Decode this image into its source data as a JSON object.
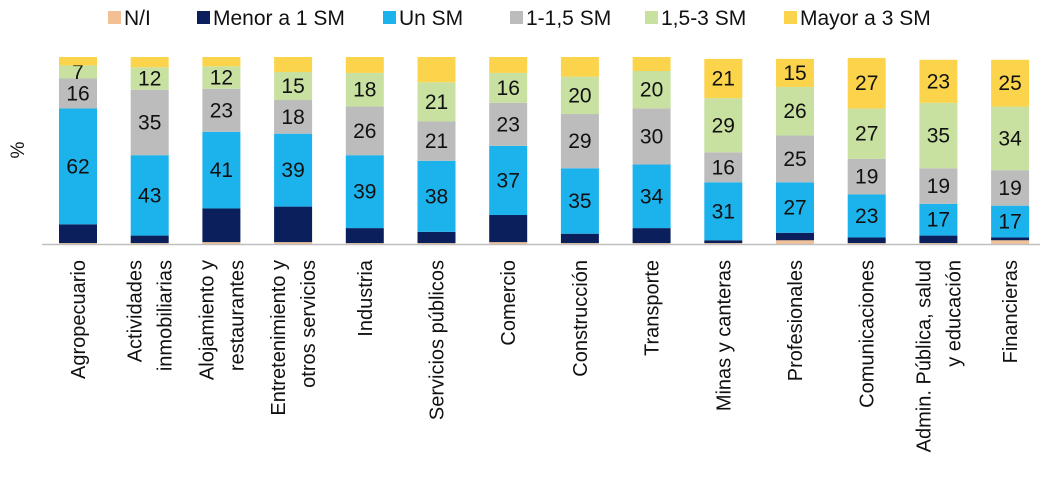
{
  "chart_data": {
    "type": "bar",
    "stacked": true,
    "orientation": "vertical",
    "ylabel": "%",
    "ylim": [
      0,
      100
    ],
    "legend_position": "top",
    "grid": false,
    "categories": [
      [
        "Agropecuario"
      ],
      [
        "Actividades",
        "inmobiliarias"
      ],
      [
        "Alojamiento y",
        "restaurantes"
      ],
      [
        "Entretenimiento y",
        "otros servicios"
      ],
      [
        "Industria"
      ],
      [
        "Servicios públicos"
      ],
      [
        "Comercio"
      ],
      [
        "Construcción"
      ],
      [
        "Transporte"
      ],
      [
        "Minas y canteras"
      ],
      [
        "Profesionales"
      ],
      [
        "Comunicaciones"
      ],
      [
        "Admin. Pública, salud",
        "y educación"
      ],
      [
        "Financieras"
      ]
    ],
    "series": [
      {
        "name": "N/I",
        "color": "#f2c094",
        "values": [
          0.5,
          0.5,
          1,
          1,
          0.5,
          0.5,
          1,
          0.5,
          0.5,
          0.5,
          2,
          0.5,
          0.5,
          2
        ]
      },
      {
        "name": "Menor a 1 SM",
        "color": "#0b1f5c",
        "values": [
          10,
          4,
          18,
          19,
          8,
          6,
          14.5,
          5,
          8,
          1.5,
          4,
          3,
          4,
          1.5
        ]
      },
      {
        "name": "Un SM",
        "color": "#1cb2ec",
        "values": [
          62,
          43,
          41,
          39,
          39,
          38,
          37,
          35,
          34,
          31,
          27,
          23,
          17,
          17
        ]
      },
      {
        "name": "1-1,5 SM",
        "color": "#bcbcbc",
        "values": [
          16,
          35,
          23,
          18,
          26,
          21,
          23,
          29,
          30,
          16,
          25,
          19,
          19,
          19
        ]
      },
      {
        "name": "1,5-3 SM",
        "color": "#c8e0a0",
        "values": [
          7,
          12,
          12,
          15,
          18,
          21,
          16,
          20,
          20,
          29,
          26,
          27,
          35,
          34
        ]
      },
      {
        "name": "Mayor a 3 SM",
        "color": "#fcd44c",
        "values": [
          4.5,
          5.5,
          5,
          8,
          8.5,
          13.5,
          8.5,
          10.5,
          7.5,
          21,
          15,
          27,
          23,
          25
        ]
      }
    ],
    "data_labels": {
      "Un SM": [
        "62",
        "43",
        "41",
        "39",
        "39",
        "38",
        "37",
        "35",
        "34",
        "31",
        "27",
        "23",
        "17",
        "17"
      ],
      "1-1,5 SM": [
        "16",
        "35",
        "23",
        "18",
        "26",
        "21",
        "23",
        "29",
        "30",
        "16",
        "25",
        "19",
        "19",
        "19"
      ],
      "1,5-3 SM": [
        "7",
        "12",
        "12",
        "15",
        "18",
        "21",
        "16",
        "20",
        "20",
        "29",
        "26",
        "27",
        "35",
        "34"
      ],
      "Mayor a 3 SM": [
        "",
        "",
        "",
        "",
        "",
        "",
        "",
        "",
        "",
        "21",
        "15",
        "27",
        "23",
        "25"
      ]
    }
  }
}
